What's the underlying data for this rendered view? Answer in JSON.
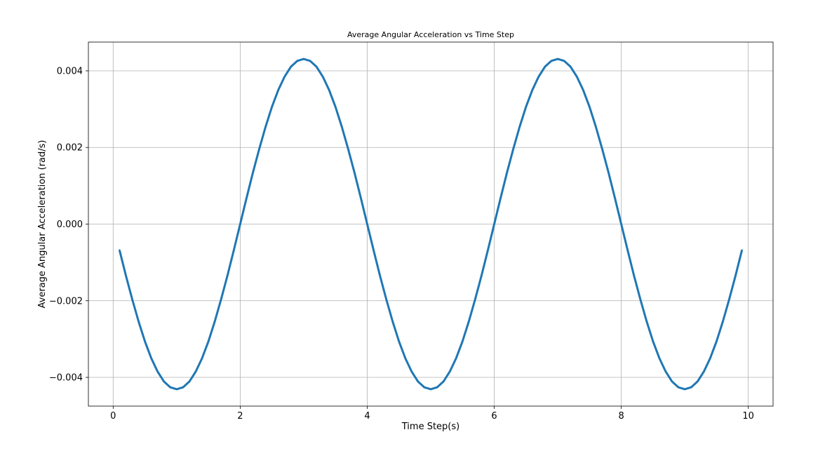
{
  "chart_data": {
    "type": "line",
    "title": "Average Angular Acceleration vs Time Step",
    "xlabel": "Time Step(s)",
    "ylabel": "Average Angular Acceleration (rad/s)",
    "xlim": [
      -0.39,
      10.39
    ],
    "ylim": [
      -0.00475,
      0.00475
    ],
    "xticks": [
      0,
      2,
      4,
      6,
      8,
      10
    ],
    "xtick_labels": [
      "0",
      "2",
      "4",
      "6",
      "8",
      "10"
    ],
    "yticks": [
      -0.004,
      -0.002,
      0.0,
      0.002,
      0.004
    ],
    "ytick_labels": [
      "−0.004",
      "−0.002",
      "0.000",
      "0.002",
      "0.004"
    ],
    "grid": true,
    "series": [
      {
        "color": "#1f77b4",
        "x": [
          0.1,
          0.2,
          0.3,
          0.4,
          0.5,
          0.6,
          0.7,
          0.8,
          0.9,
          1.0,
          1.1,
          1.2,
          1.3,
          1.4,
          1.5,
          1.6,
          1.7,
          1.8,
          1.9,
          2.0,
          2.1,
          2.2,
          2.3,
          2.4,
          2.5,
          2.6,
          2.7,
          2.8,
          2.9,
          3.0,
          3.1,
          3.2,
          3.3,
          3.4,
          3.5,
          3.6,
          3.7,
          3.8,
          3.9,
          4.0,
          4.1,
          4.2,
          4.3,
          4.4,
          4.5,
          4.6,
          4.7,
          4.8,
          4.9,
          5.0,
          5.1,
          5.2,
          5.3,
          5.4,
          5.5,
          5.6,
          5.7,
          5.8,
          5.9,
          6.0,
          6.1,
          6.2,
          6.3,
          6.4,
          6.5,
          6.6,
          6.7,
          6.8,
          6.9,
          7.0,
          7.1,
          7.2,
          7.3,
          7.4,
          7.5,
          7.6,
          7.7,
          7.8,
          7.9,
          8.0,
          8.1,
          8.2,
          8.3,
          8.4,
          8.5,
          8.6,
          8.7,
          8.8,
          8.9,
          9.0,
          9.1,
          9.2,
          9.3,
          9.4,
          9.5,
          9.6,
          9.7,
          9.8,
          9.9
        ],
        "y": [
          -0.00068,
          -0.00134,
          -0.00196,
          -0.00254,
          -0.00306,
          -0.0035,
          -0.00385,
          -0.00411,
          -0.00426,
          -0.00431,
          -0.00426,
          -0.00411,
          -0.00385,
          -0.0035,
          -0.00306,
          -0.00254,
          -0.00196,
          -0.00134,
          -0.00068,
          0.0,
          0.00068,
          0.00134,
          0.00196,
          0.00254,
          0.00306,
          0.0035,
          0.00385,
          0.00411,
          0.00426,
          0.00431,
          0.00426,
          0.00411,
          0.00385,
          0.0035,
          0.00306,
          0.00254,
          0.00196,
          0.00134,
          0.00068,
          0.0,
          -0.00068,
          -0.00134,
          -0.00196,
          -0.00254,
          -0.00306,
          -0.0035,
          -0.00385,
          -0.00411,
          -0.00426,
          -0.00431,
          -0.00426,
          -0.00411,
          -0.00385,
          -0.0035,
          -0.00306,
          -0.00254,
          -0.00196,
          -0.00134,
          -0.00068,
          0.0,
          0.00068,
          0.00134,
          0.00196,
          0.00254,
          0.00306,
          0.0035,
          0.00385,
          0.00411,
          0.00426,
          0.00431,
          0.00426,
          0.00411,
          0.00385,
          0.0035,
          0.00306,
          0.00254,
          0.00196,
          0.00134,
          0.00068,
          0.0,
          -0.00068,
          -0.00134,
          -0.00196,
          -0.00254,
          -0.00306,
          -0.0035,
          -0.00385,
          -0.00411,
          -0.00426,
          -0.00431,
          -0.00426,
          -0.00411,
          -0.00385,
          -0.0035,
          -0.00306,
          -0.00254,
          -0.00196,
          -0.00134,
          -0.00068
        ]
      }
    ]
  }
}
